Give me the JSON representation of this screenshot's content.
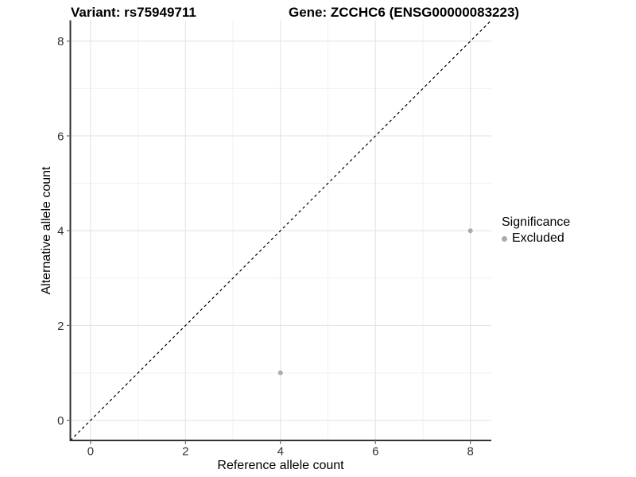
{
  "chart_data": {
    "type": "scatter",
    "title_left": "Variant: rs75949711",
    "title_right": "Gene: ZCCHC6 (ENSG00000083223)",
    "xlabel": "Reference allele count",
    "ylabel": "Alternative allele count",
    "xlim": [
      -0.425,
      8.44
    ],
    "ylim": [
      -0.425,
      8.44
    ],
    "xticks": [
      0,
      2,
      4,
      6,
      8
    ],
    "yticks": [
      0,
      2,
      4,
      6,
      8
    ],
    "xminor": [
      1,
      3,
      5,
      7
    ],
    "yminor": [
      1,
      3,
      5,
      7
    ],
    "grid": "major+minor",
    "series": [
      {
        "name": "Excluded",
        "color": "#ABABAB",
        "points": [
          {
            "x": 4,
            "y": 1
          },
          {
            "x": 8,
            "y": 4
          }
        ]
      }
    ],
    "reference_line": {
      "slope": 1,
      "intercept": 0,
      "style": "dashed",
      "color": "#000000"
    },
    "legend": {
      "title": "Significance",
      "position": "right",
      "entries": [
        {
          "label": "Excluded",
          "color": "#ABABAB"
        }
      ]
    },
    "colors": {
      "background": "#FFFFFF",
      "axis_line": "#333333",
      "tick_mark": "#666666",
      "tick_label": "#333333",
      "grid_major": "#E4E4E4",
      "grid_minor": "#EFEFEF",
      "title": "#000000"
    }
  }
}
